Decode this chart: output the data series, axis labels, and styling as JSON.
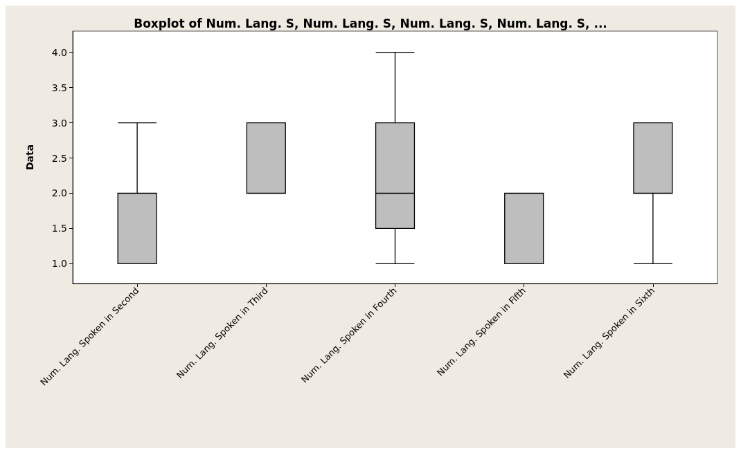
{
  "chart_data": {
    "type": "box",
    "title": "Boxplot of Num. Lang. S, Num. Lang. S, Num. Lang. S, Num. Lang. S, ...",
    "ylabel": "Data",
    "categories": [
      "Num. Lang. Spoken in Second",
      "Num. Lang. Spoken in Third",
      "Num. Lang. Spoken in Fourth",
      "Num. Lang. Spoken in Fifth",
      "Num. Lang. Spoken in Sixth"
    ],
    "series": [
      {
        "color": "#bebebe",
        "boxes": [
          {
            "low": 1,
            "q1": 1,
            "median": 1,
            "q3": 2,
            "high": 3
          },
          {
            "low": 2,
            "q1": 2,
            "median": 3,
            "q3": 3,
            "high": 3
          },
          {
            "low": 1,
            "q1": 1.5,
            "median": 2,
            "q3": 3,
            "high": 4
          },
          {
            "low": 1,
            "q1": 1,
            "median": 1,
            "q3": 2,
            "high": 2
          },
          {
            "low": 1,
            "q1": 2,
            "median": 3,
            "q3": 3,
            "high": 3
          }
        ]
      }
    ],
    "ylim": [
      0.72,
      4.3
    ],
    "yticks": [
      {
        "value": 1,
        "label": "1.0"
      },
      {
        "value": 1.5,
        "label": "1.5"
      },
      {
        "value": 2,
        "label": "2.0"
      },
      {
        "value": 2.5,
        "label": "2.5"
      },
      {
        "value": 3,
        "label": "3.0"
      },
      {
        "value": 3.5,
        "label": "3.5"
      },
      {
        "value": 4,
        "label": "4.0"
      }
    ]
  }
}
